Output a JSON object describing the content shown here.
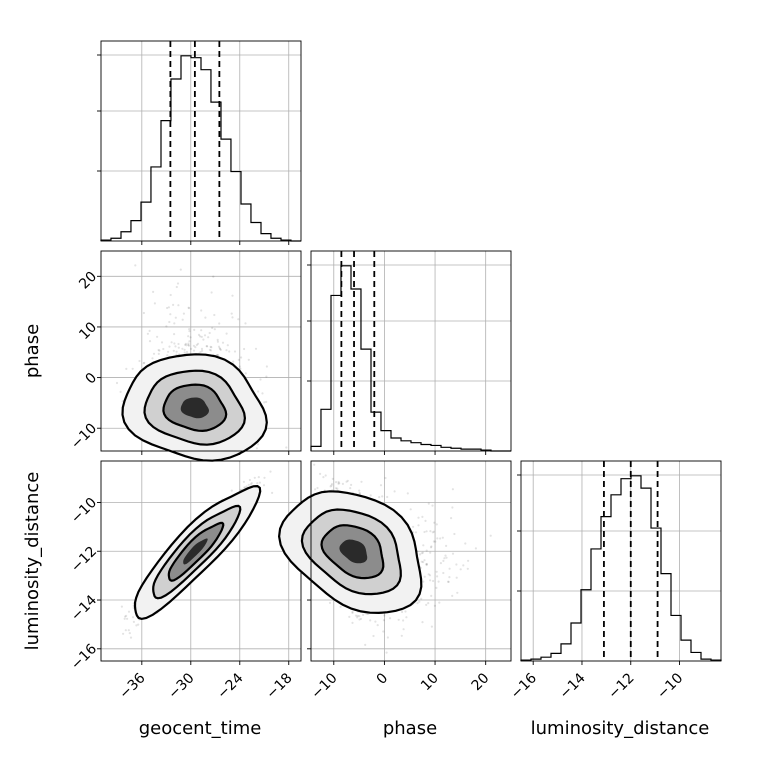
{
  "chart_data": {
    "type": "corner",
    "parameters": [
      "geocent_time",
      "phase",
      "luminosity_distance"
    ],
    "tick_labels": {
      "geocent_time": [
        "−36",
        "−30",
        "−24",
        "−18"
      ],
      "phase": [
        "−10",
        "0",
        "10",
        "20"
      ],
      "luminosity_distance": [
        "−16",
        "−14",
        "−12",
        "−10"
      ]
    },
    "ticks": {
      "geocent_time": [
        -36,
        -30,
        -24,
        -18
      ],
      "phase": [
        -10,
        0,
        10,
        20
      ],
      "luminosity_distance": [
        -16,
        -14,
        -12,
        -10
      ]
    },
    "ranges": {
      "geocent_time": [
        -41,
        -16.5
      ],
      "phase": [
        -14.5,
        25
      ],
      "luminosity_distance": [
        -16.5,
        -8.3
      ]
    },
    "grid": true,
    "quantiles": {
      "geocent_time": [
        -32.5,
        -29.5,
        -26.5
      ],
      "phase": [
        -8.5,
        -6,
        -2
      ],
      "luminosity_distance": [
        -13.1,
        -12,
        -10.9
      ]
    },
    "histograms": {
      "geocent_time": {
        "bin_edges": [
          -41,
          -39.78,
          -38.55,
          -37.33,
          -36.1,
          -34.88,
          -33.65,
          -32.43,
          -31.2,
          -29.98,
          -28.75,
          -27.53,
          -26.3,
          -25.08,
          -23.85,
          -22.63,
          -21.4,
          -20.18,
          -18.95,
          -17.73,
          -16.5
        ],
        "counts": [
          1,
          3,
          10,
          22,
          42,
          80,
          130,
          175,
          200,
          198,
          185,
          150,
          110,
          75,
          40,
          20,
          8,
          3,
          1,
          0
        ]
      },
      "phase": {
        "bin_edges": [
          -14.5,
          -12.53,
          -10.55,
          -8.58,
          -6.6,
          -4.63,
          -2.65,
          -0.68,
          1.3,
          3.28,
          5.25,
          7.23,
          9.2,
          11.18,
          13.15,
          15.13,
          17.1,
          19.08,
          21.05,
          23.03,
          25
        ],
        "counts": [
          5,
          45,
          168,
          200,
          175,
          110,
          42,
          22,
          14,
          11,
          9,
          7,
          6,
          4,
          3,
          2,
          2,
          1,
          0,
          0
        ]
      },
      "luminosity_distance": {
        "bin_edges": [
          -16.5,
          -16.09,
          -15.68,
          -15.27,
          -14.86,
          -14.45,
          -14.04,
          -13.63,
          -13.22,
          -12.81,
          -12.4,
          -11.99,
          -11.58,
          -11.17,
          -10.76,
          -10.35,
          -9.94,
          -9.53,
          -9.12,
          -8.71,
          -8.3
        ],
        "counts": [
          1,
          2,
          4,
          8,
          18,
          40,
          75,
          118,
          152,
          175,
          192,
          195,
          182,
          140,
          92,
          48,
          22,
          9,
          2,
          1
        ]
      }
    },
    "scatter_correlations": {
      "geocent_time|phase": -0.3,
      "geocent_time|luminosity_distance": 0.95,
      "phase|luminosity_distance": -0.4
    }
  }
}
